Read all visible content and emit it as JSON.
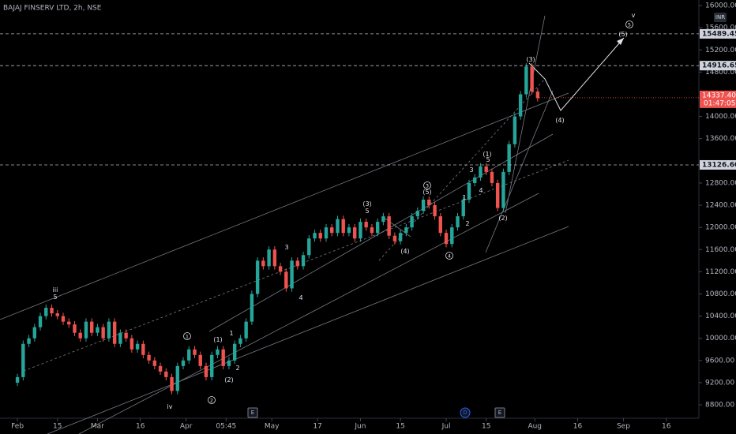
{
  "chart_data": {
    "type": "candlestick",
    "title": "BAJAJ FINSERV LTD, 2h, NSE",
    "currency": "INR",
    "up_color": "#26a69a",
    "down_color": "#ef5350",
    "x": [
      32,
      34,
      36,
      38,
      40,
      42,
      44,
      46,
      48,
      50,
      52,
      54,
      56,
      58,
      60,
      62,
      64,
      66,
      68,
      70,
      72,
      74,
      76,
      78,
      80,
      82,
      84,
      86,
      88,
      90,
      92,
      94,
      96,
      98,
      100,
      102,
      104,
      106,
      108,
      110,
      112,
      114,
      116,
      118,
      120,
      122,
      124,
      126,
      128,
      130,
      132,
      134,
      136,
      138,
      140,
      142,
      144,
      146,
      148,
      150,
      152,
      154,
      156,
      158,
      160,
      162,
      164,
      166,
      168,
      170,
      172,
      174,
      176,
      178,
      180,
      182,
      184,
      186,
      188,
      190,
      192,
      194,
      196,
      198,
      200,
      202,
      204,
      206,
      208,
      210,
      212,
      214
    ],
    "open": [
      9200,
      9300,
      9900,
      10000,
      10200,
      10400,
      10550,
      10450,
      10400,
      10300,
      10250,
      10100,
      10000,
      10300,
      10100,
      10200,
      10000,
      10300,
      9900,
      10100,
      10000,
      9800,
      9900,
      9700,
      9600,
      9500,
      9400,
      9300,
      9050,
      9500,
      9600,
      9800,
      9700,
      9500,
      9300,
      9700,
      9800,
      9500,
      9600,
      9900,
      10000,
      10300,
      10800,
      11400,
      11300,
      11600,
      11300,
      11200,
      10900,
      11400,
      11300,
      11500,
      11800,
      11900,
      11800,
      12000,
      11900,
      12150,
      11900,
      12000,
      11800,
      12100,
      12000,
      11900,
      12100,
      12200,
      11850,
      11750,
      11900,
      12000,
      12200,
      12300,
      12500,
      12400,
      12200,
      11900,
      11700,
      12000,
      12200,
      12500,
      12800,
      12900,
      13100,
      13000,
      12800,
      12350,
      13000,
      13500,
      14000,
      14400,
      14900,
      14450
    ],
    "high": [
      9360,
      9960,
      10060,
      10260,
      10460,
      10610,
      10610,
      10510,
      10460,
      10360,
      10310,
      10160,
      10360,
      10360,
      10260,
      10260,
      10360,
      10360,
      10160,
      10160,
      10060,
      9960,
      9960,
      9760,
      9660,
      9560,
      9460,
      9360,
      9560,
      9660,
      9860,
      9860,
      9760,
      9560,
      9760,
      9860,
      9860,
      9660,
      9960,
      10060,
      10360,
      10860,
      11460,
      11460,
      11660,
      11660,
      11360,
      11260,
      11460,
      11460,
      11560,
      11860,
      11960,
      11960,
      12060,
      12060,
      12210,
      12210,
      12060,
      12060,
      12160,
      12160,
      12060,
      12160,
      12260,
      12260,
      11910,
      11960,
      12060,
      12260,
      12360,
      12560,
      12560,
      12460,
      12260,
      11960,
      12060,
      12260,
      12560,
      12860,
      12960,
      13160,
      13160,
      13060,
      12860,
      13060,
      13560,
      14060,
      14460,
      14960,
      14960,
      14510
    ],
    "low": [
      9140,
      9240,
      9840,
      9940,
      10140,
      10340,
      10390,
      10340,
      10240,
      10190,
      10040,
      9940,
      9940,
      10040,
      10040,
      9940,
      9940,
      9840,
      9840,
      9940,
      9740,
      9740,
      9640,
      9540,
      9440,
      9340,
      9240,
      8990,
      8990,
      9440,
      9540,
      9640,
      9440,
      9240,
      9240,
      9640,
      9440,
      9440,
      9540,
      9840,
      9940,
      10240,
      10740,
      11240,
      11240,
      11240,
      11140,
      10840,
      10840,
      11240,
      11240,
      11440,
      11740,
      11740,
      11740,
      11840,
      11840,
      11840,
      11840,
      11740,
      11740,
      11940,
      11840,
      11840,
      12040,
      11790,
      11690,
      11690,
      11840,
      11940,
      12140,
      12240,
      12340,
      12140,
      11840,
      11640,
      11640,
      11940,
      12140,
      12440,
      12740,
      12840,
      12940,
      12740,
      12290,
      12290,
      12940,
      13440,
      13940,
      14340,
      14390,
      14270
    ],
    "close": [
      9300,
      9900,
      10000,
      10200,
      10400,
      10550,
      10450,
      10400,
      10300,
      10250,
      10100,
      10000,
      10300,
      10100,
      10200,
      10000,
      10300,
      9900,
      10100,
      10000,
      9800,
      9900,
      9700,
      9600,
      9500,
      9400,
      9300,
      9050,
      9500,
      9600,
      9800,
      9700,
      9500,
      9300,
      9700,
      9800,
      9500,
      9600,
      9900,
      10000,
      10300,
      10800,
      11400,
      11300,
      11600,
      11300,
      11200,
      10900,
      11400,
      11300,
      11500,
      11800,
      11900,
      11800,
      12000,
      11900,
      12150,
      11900,
      12000,
      11800,
      12100,
      12000,
      11900,
      12100,
      12200,
      11850,
      11750,
      11900,
      12000,
      12200,
      12300,
      12500,
      12400,
      12200,
      11900,
      11700,
      12000,
      12200,
      12500,
      12800,
      12900,
      13100,
      13000,
      12800,
      12350,
      13000,
      13500,
      14000,
      14400,
      14900,
      14450,
      14330
    ],
    "xlim": [
      25.9,
      270.4
    ],
    "ylim": [
      8630,
      16100
    ],
    "xticks": [
      {
        "value": 32,
        "label": "Feb"
      },
      {
        "value": 46,
        "label": "15"
      },
      {
        "value": 60,
        "label": "Mar"
      },
      {
        "value": 75,
        "label": "16"
      },
      {
        "value": 91,
        "label": "Apr"
      },
      {
        "value": 105,
        "label": "05:45"
      },
      {
        "value": 121,
        "label": "May"
      },
      {
        "value": 137,
        "label": "17"
      },
      {
        "value": 152,
        "label": "Jun"
      },
      {
        "value": 166,
        "label": "15"
      },
      {
        "value": 182,
        "label": "Jul"
      },
      {
        "value": 196,
        "label": "15"
      },
      {
        "value": 213,
        "label": "Aug"
      },
      {
        "value": 228,
        "label": "16"
      },
      {
        "value": 244,
        "label": "Sep"
      },
      {
        "value": 259,
        "label": "16"
      }
    ],
    "yticks": [
      {
        "value": 8800,
        "label": "8800.00"
      },
      {
        "value": 9200,
        "label": "9200.00"
      },
      {
        "value": 9600,
        "label": "9600.00"
      },
      {
        "value": 10000,
        "label": "10000.00"
      },
      {
        "value": 10400,
        "label": "10400.00"
      },
      {
        "value": 10800,
        "label": "10800.00"
      },
      {
        "value": 11200,
        "label": "11200.00"
      },
      {
        "value": 11600,
        "label": "11600.00"
      },
      {
        "value": 12000,
        "label": "12000.00"
      },
      {
        "value": 12400,
        "label": "12400.00"
      },
      {
        "value": 12800,
        "label": "12800.00"
      },
      {
        "value": 13600,
        "label": "13600.00"
      },
      {
        "value": 14000,
        "label": "14000.00"
      },
      {
        "value": 14800,
        "label": "14800.00"
      },
      {
        "value": 15200,
        "label": "15200.00"
      },
      {
        "value": 15600,
        "label": "15600.00"
      },
      {
        "value": 16000,
        "label": "16000.00"
      }
    ],
    "price_lines": [
      {
        "value": 15489.45,
        "label": "15489.45"
      },
      {
        "value": 14916.65,
        "label": "14916.65"
      },
      {
        "value": 13126.6,
        "label": "13126.60"
      }
    ],
    "last_price": {
      "value": 14337.4,
      "label": "14337.40"
    },
    "countdown": "01:47:05",
    "annotations": [
      "iii",
      "5",
      "iv",
      "1",
      "2",
      "(1)",
      "1",
      "(2)",
      "2",
      "3",
      "4",
      "(3)",
      "5",
      "(4)",
      "3",
      "(5)",
      "4",
      "1",
      "2",
      "3",
      "4",
      "(1)",
      "5",
      "(2)",
      "(3)",
      "(4)",
      "(5)",
      "5",
      "v"
    ],
    "events": [
      "E",
      "D",
      "E"
    ]
  }
}
